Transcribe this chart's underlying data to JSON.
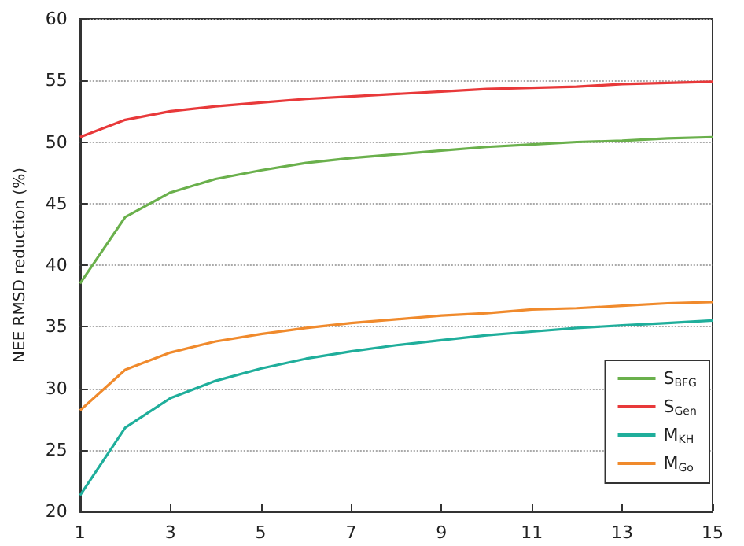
{
  "chart_data": {
    "type": "line",
    "ylabel": "NEE RMSD reduction (%)",
    "x": [
      1,
      2,
      3,
      4,
      5,
      6,
      7,
      8,
      9,
      10,
      11,
      12,
      13,
      14,
      15
    ],
    "xlim": [
      1,
      15
    ],
    "xticks": [
      1,
      3,
      5,
      7,
      9,
      11,
      13,
      15
    ],
    "ylim": [
      20,
      60
    ],
    "yticks": [
      20,
      25,
      30,
      35,
      40,
      45,
      50,
      55,
      60
    ],
    "grid": "y",
    "legend": "bottom right",
    "marker": "none",
    "line_style": "solid",
    "series": [
      {
        "name": "S$_{BFG}$",
        "color": "#6ab04c",
        "values": [
          38.5,
          43.9,
          45.9,
          47.0,
          47.7,
          48.3,
          48.7,
          49.0,
          49.3,
          49.6,
          49.8,
          50.0,
          50.1,
          50.3,
          50.4
        ]
      },
      {
        "name": "S$_{Gen}$",
        "color": "#e8393a",
        "values": [
          50.4,
          51.8,
          52.5,
          52.9,
          53.2,
          53.5,
          53.7,
          53.9,
          54.1,
          54.3,
          54.4,
          54.5,
          54.7,
          54.8,
          54.9
        ]
      },
      {
        "name": "M$_{KH}$",
        "color": "#1fae9b",
        "values": [
          21.3,
          26.8,
          29.2,
          30.6,
          31.6,
          32.4,
          33.0,
          33.5,
          33.9,
          34.3,
          34.6,
          34.9,
          35.1,
          35.3,
          35.5
        ]
      },
      {
        "name": "M$_{Go}$",
        "color": "#f08a2c",
        "values": [
          28.2,
          31.5,
          32.9,
          33.8,
          34.4,
          34.9,
          35.3,
          35.6,
          35.9,
          36.1,
          36.4,
          36.5,
          36.7,
          36.9,
          37.0
        ]
      }
    ]
  }
}
